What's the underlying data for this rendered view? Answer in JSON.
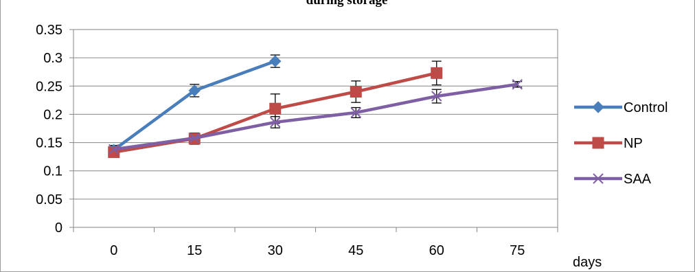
{
  "chart_data": {
    "type": "line",
    "title": "during storage",
    "xlabel": "days",
    "ylabel": "",
    "categories": [
      "0",
      "15",
      "30",
      "45",
      "60",
      "75"
    ],
    "ylim": [
      0,
      0.35
    ],
    "yticks": [
      "0",
      "0.05",
      "0.1",
      "0.15",
      "0.2",
      "0.25",
      "0.3",
      "0.35"
    ],
    "grid": true,
    "legend_position": "right",
    "series": [
      {
        "name": "Control",
        "color": "#4a7ebb",
        "marker": "diamond",
        "values": [
          0.137,
          0.242,
          0.294,
          null,
          null,
          null
        ],
        "errors": [
          0.008,
          0.011,
          0.011,
          null,
          null,
          null
        ]
      },
      {
        "name": "NP",
        "color": "#be4b48",
        "marker": "square",
        "values": [
          0.133,
          0.157,
          0.21,
          0.24,
          0.273,
          null
        ],
        "errors": [
          0.008,
          0.01,
          0.026,
          0.019,
          0.021,
          null
        ]
      },
      {
        "name": "SAA",
        "color": "#7e5fa3",
        "marker": "x",
        "values": [
          0.138,
          0.158,
          0.186,
          0.203,
          0.232,
          0.253
        ],
        "errors": [
          0.007,
          0.008,
          0.01,
          0.009,
          0.012,
          0.005
        ]
      }
    ]
  }
}
